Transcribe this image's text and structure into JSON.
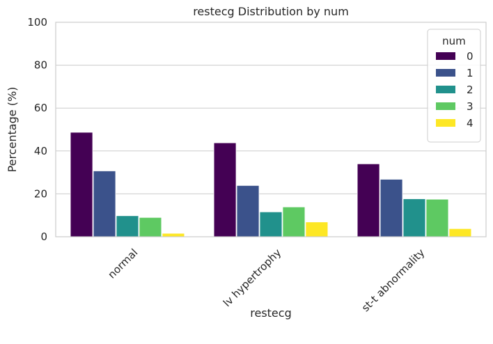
{
  "chart_data": {
    "type": "bar",
    "title": "restecg Distribution by num",
    "xlabel": "restecg",
    "ylabel": "Percentage (%)",
    "ylim": [
      0,
      100
    ],
    "yticks": [
      "0",
      "20",
      "40",
      "60",
      "80",
      "100"
    ],
    "categories": [
      "normal",
      "lv hypertrophy",
      "st-t abnormality"
    ],
    "legend_title": "num",
    "legend_position": "top-right",
    "grid": true,
    "series": [
      {
        "name": "0",
        "color": "#440154",
        "values": [
          48.7,
          43.8,
          34.0
        ]
      },
      {
        "name": "1",
        "color": "#3b528b",
        "values": [
          30.7,
          23.9,
          26.8
        ]
      },
      {
        "name": "2",
        "color": "#21918c",
        "values": [
          9.8,
          11.6,
          17.7
        ]
      },
      {
        "name": "3",
        "color": "#5ec962",
        "values": [
          9.0,
          13.9,
          17.5
        ]
      },
      {
        "name": "4",
        "color": "#fde725",
        "values": [
          1.6,
          6.9,
          3.8
        ]
      }
    ]
  }
}
